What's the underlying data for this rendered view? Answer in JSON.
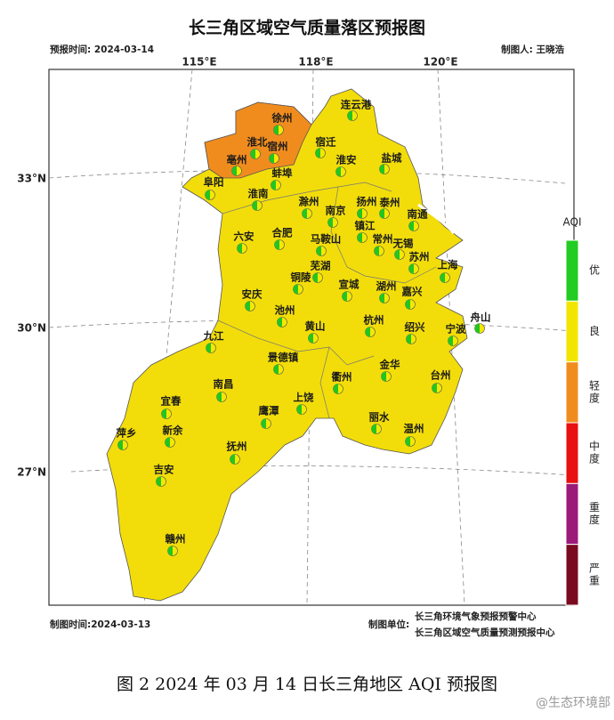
{
  "header": {
    "title": "长三角区域空气质量落区预报图",
    "forecast_time": "预报时间: 2024-03-14",
    "author": "制图人: 王晓浩"
  },
  "longitudes": [
    "115°E",
    "118°E",
    "120°E"
  ],
  "latitudes": [
    "33°N",
    "30°N",
    "27°N"
  ],
  "cities": [
    "连云港",
    "徐州",
    "淮北",
    "宿州",
    "宿迁",
    "盐城",
    "淮安",
    "亳州",
    "蚌埠",
    "阜阳",
    "淮南",
    "滁州",
    "南京",
    "扬州",
    "泰州",
    "南通",
    "镇江",
    "六安",
    "合肥",
    "马鞍山",
    "常州",
    "无锡",
    "苏州",
    "上海",
    "芜湖",
    "铜陵",
    "宣城",
    "湖州",
    "嘉兴",
    "安庆",
    "池州",
    "黄山",
    "杭州",
    "绍兴",
    "宁波",
    "舟山",
    "九江",
    "景德镇",
    "衢州",
    "金华",
    "台州",
    "南昌",
    "上饶",
    "鹰潭",
    "宜春",
    "新余",
    "抚州",
    "丽水",
    "温州",
    "萍乡",
    "吉安",
    "赣州"
  ],
  "legend": {
    "title": "AQI",
    "items": [
      {
        "name": "优",
        "color": "#22cc22"
      },
      {
        "name": "良",
        "color": "#f2e600"
      },
      {
        "name": "轻度",
        "color": "#f08c1e"
      },
      {
        "name": "中度",
        "color": "#e81010"
      },
      {
        "name": "重度",
        "color": "#9c1a78"
      },
      {
        "name": "严重",
        "color": "#7a0a20"
      }
    ]
  },
  "footer": {
    "made_time": "制图时间:2024-03-13",
    "unit_label": "制图单位:",
    "unit_1": "长三角环境气象预报预警中心",
    "unit_2": "长三角区域空气质量预测预报中心"
  },
  "caption": "图 2 2024 年 03 月 14 日长三角地区 AQI 预报图",
  "watermark": "@生态环境部"
}
